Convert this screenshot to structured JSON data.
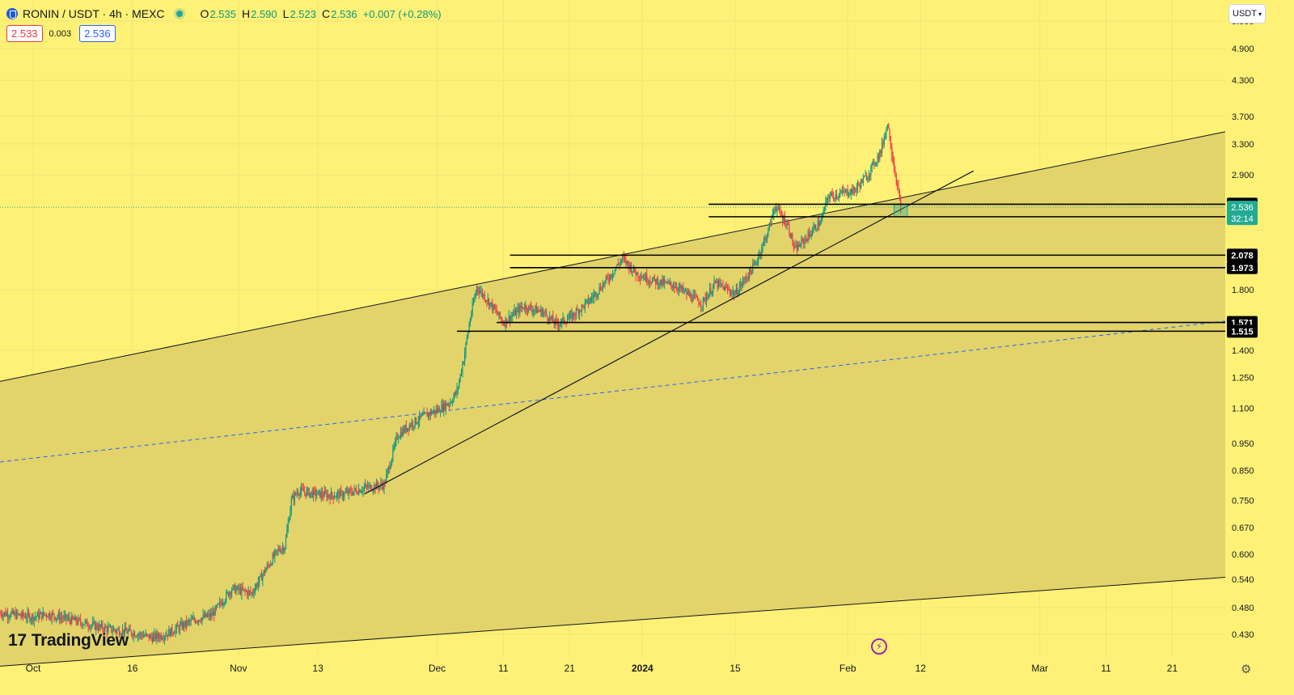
{
  "legend": {
    "symbol_title": "RONIN / USDT · 4h · MEXC",
    "open_label": "O",
    "open": "2.535",
    "high_label": "H",
    "high": "2.590",
    "low_label": "L",
    "low": "2.523",
    "close_label": "C",
    "close": "2.536",
    "change": "+0.007 (+0.28%)"
  },
  "quote": {
    "sell": "2.533",
    "spread": "0.003",
    "buy": "2.536"
  },
  "currency_selector": "USDT",
  "watermark": "TradingView",
  "chart_data": {
    "type": "candlestick",
    "symbol": "RONIN / USDT",
    "interval": "4h",
    "exchange": "MEXC",
    "scale": "log",
    "ylim": [
      0.39,
      6.0
    ],
    "x_range": [
      "2023-09-26",
      "2024-03-29"
    ],
    "x_tick_labels": [
      {
        "date": "2023-10-01",
        "label": "Oct"
      },
      {
        "date": "2023-10-16",
        "label": "16"
      },
      {
        "date": "2023-11-01",
        "label": "Nov"
      },
      {
        "date": "2023-11-13",
        "label": "13"
      },
      {
        "date": "2023-12-01",
        "label": "Dec"
      },
      {
        "date": "2023-12-11",
        "label": "11"
      },
      {
        "date": "2023-12-21",
        "label": "21"
      },
      {
        "date": "2024-01-01",
        "label": "2024"
      },
      {
        "date": "2024-01-15",
        "label": "15"
      },
      {
        "date": "2024-02-01",
        "label": "Feb"
      },
      {
        "date": "2024-02-12",
        "label": "12"
      },
      {
        "date": "2024-03-01",
        "label": "Mar"
      },
      {
        "date": "2024-03-11",
        "label": "11"
      },
      {
        "date": "2024-03-21",
        "label": "21"
      }
    ],
    "y_tick_labels": [
      "5.500",
      "4.900",
      "4.300",
      "3.700",
      "3.300",
      "2.900",
      "1.800",
      "1.400",
      "1.250",
      "1.100",
      "0.950",
      "0.850",
      "0.750",
      "0.670",
      "0.600",
      "0.540",
      "0.480",
      "0.430"
    ],
    "price_path": [
      [
        "2023-09-26",
        0.47
      ],
      [
        "2023-10-01",
        0.462
      ],
      [
        "2023-10-03",
        0.468
      ],
      [
        "2023-10-07",
        0.456
      ],
      [
        "2023-10-12",
        0.44
      ],
      [
        "2023-10-16",
        0.433
      ],
      [
        "2023-10-19",
        0.424
      ],
      [
        "2023-10-21",
        0.43
      ],
      [
        "2023-10-25",
        0.455
      ],
      [
        "2023-10-28",
        0.466
      ],
      [
        "2023-10-31",
        0.52
      ],
      [
        "2023-11-03",
        0.51
      ],
      [
        "2023-11-05",
        0.56
      ],
      [
        "2023-11-07",
        0.61
      ],
      [
        "2023-11-08",
        0.62
      ],
      [
        "2023-11-09",
        0.75
      ],
      [
        "2023-11-10",
        0.78
      ],
      [
        "2023-11-13",
        0.77
      ],
      [
        "2023-11-15",
        0.765
      ],
      [
        "2023-11-17",
        0.77
      ],
      [
        "2023-11-20",
        0.79
      ],
      [
        "2023-11-23",
        0.8
      ],
      [
        "2023-11-25",
        0.98
      ],
      [
        "2023-11-27",
        1.03
      ],
      [
        "2023-11-30",
        1.08
      ],
      [
        "2023-12-01",
        1.09
      ],
      [
        "2023-12-03",
        1.13
      ],
      [
        "2023-12-04",
        1.18
      ],
      [
        "2023-12-05",
        1.35
      ],
      [
        "2023-12-06",
        1.6
      ],
      [
        "2023-12-07",
        1.82
      ],
      [
        "2023-12-09",
        1.7
      ],
      [
        "2023-12-11",
        1.57
      ],
      [
        "2023-12-14",
        1.68
      ],
      [
        "2023-12-17",
        1.64
      ],
      [
        "2023-12-19",
        1.56
      ],
      [
        "2023-12-21",
        1.6
      ],
      [
        "2023-12-24",
        1.72
      ],
      [
        "2023-12-27",
        1.9
      ],
      [
        "2023-12-29",
        2.05
      ],
      [
        "2023-12-31",
        1.93
      ],
      [
        "2024-01-02",
        1.88
      ],
      [
        "2024-01-04",
        1.85
      ],
      [
        "2024-01-06",
        1.83
      ],
      [
        "2024-01-08",
        1.76
      ],
      [
        "2024-01-10",
        1.7
      ],
      [
        "2024-01-12",
        1.85
      ],
      [
        "2024-01-15",
        1.77
      ],
      [
        "2024-01-18",
        2.0
      ],
      [
        "2024-01-20",
        2.3
      ],
      [
        "2024-01-21",
        2.55
      ],
      [
        "2024-01-23",
        2.35
      ],
      [
        "2024-01-24",
        2.12
      ],
      [
        "2024-01-26",
        2.25
      ],
      [
        "2024-01-28",
        2.4
      ],
      [
        "2024-01-29",
        2.65
      ],
      [
        "2024-02-02",
        2.72
      ],
      [
        "2024-02-04",
        2.9
      ],
      [
        "2024-02-06",
        3.2
      ],
      [
        "2024-02-07",
        3.6
      ],
      [
        "2024-02-08",
        3.0
      ],
      [
        "2024-02-09",
        2.536
      ]
    ],
    "candle_ohlc_last": {
      "open": 2.535,
      "high": 2.59,
      "low": 2.523,
      "close": 2.536
    },
    "horizontal_levels": [
      {
        "label": "2.568",
        "value": 2.568,
        "from": "2024-01-11"
      },
      {
        "label": "2.438",
        "value": 2.438,
        "from": "2024-01-11"
      },
      {
        "label": "2.078",
        "value": 2.078,
        "from": "2023-12-12"
      },
      {
        "label": "1.973",
        "value": 1.973,
        "from": "2023-12-12"
      },
      {
        "label": "1.571",
        "value": 1.571,
        "from": "2023-12-10"
      },
      {
        "label": "1.515",
        "value": 1.515,
        "from": "2023-12-04"
      }
    ],
    "channel": {
      "upper": [
        [
          "2023-09-26",
          1.23
        ],
        [
          "2024-03-29",
          3.47
        ]
      ],
      "lower": [
        [
          "2023-10-16",
          0.392
        ],
        [
          "2024-03-29",
          0.545
        ]
      ],
      "median": [
        [
          "2023-09-26",
          0.88
        ],
        [
          "2024-03-29",
          1.58
        ]
      ],
      "fill_color": "#e2d46a"
    },
    "trendline": [
      [
        "2023-11-20",
        0.77
      ],
      [
        "2024-02-20",
        2.95
      ]
    ],
    "last_price": {
      "label": "2.536",
      "value": 2.536,
      "countdown": "32:14",
      "color": "#22ab94"
    },
    "colors": {
      "up": "#089981",
      "down": "#f23645",
      "levels": "#000000",
      "median": "#2962ff"
    }
  }
}
